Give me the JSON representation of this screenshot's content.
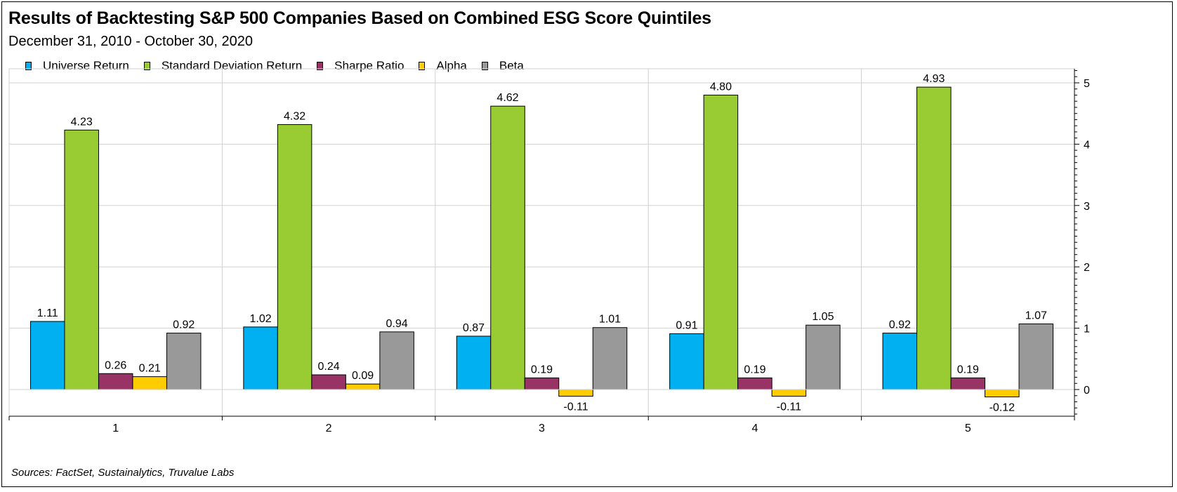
{
  "chart_data": {
    "type": "bar",
    "title": "Results of Backtesting S&P 500 Companies Based on Combined ESG Score Quintiles",
    "subtitle": "December 31, 2010 - October 30, 2020",
    "source": "Sources: FactSet, Sustainalytics, Truvalue Labs",
    "categories": [
      "1",
      "2",
      "3",
      "4",
      "5"
    ],
    "series": [
      {
        "name": "Universe Return",
        "color": "#00B0F0",
        "values": [
          1.11,
          1.02,
          0.87,
          0.91,
          0.92
        ],
        "labels": [
          "1.11",
          "1.02",
          "0.87",
          "0.91",
          "0.92"
        ]
      },
      {
        "name": "Standard Deviation Return",
        "color": "#99CC33",
        "values": [
          4.23,
          4.32,
          4.62,
          4.8,
          4.93
        ],
        "labels": [
          "4.23",
          "4.32",
          "4.62",
          "4.80",
          "4.93"
        ]
      },
      {
        "name": "Sharpe Ratio",
        "color": "#993366",
        "values": [
          0.26,
          0.24,
          0.19,
          0.19,
          0.19
        ],
        "labels": [
          "0.26",
          "0.24",
          "0.19",
          "0.19",
          "0.19"
        ]
      },
      {
        "name": "Alpha",
        "color": "#FFCC00",
        "values": [
          0.21,
          0.09,
          -0.11,
          -0.11,
          -0.12
        ],
        "labels": [
          "0.21",
          "0.09",
          "-0.11",
          "-0.11",
          "-0.12"
        ]
      },
      {
        "name": "Beta",
        "color": "#999999",
        "values": [
          0.92,
          0.94,
          1.01,
          1.05,
          1.07
        ],
        "labels": [
          "0.92",
          "0.94",
          "1.01",
          "1.05",
          "1.07"
        ]
      }
    ],
    "ylim": [
      -0.45,
      5.2
    ],
    "yticks": [
      0,
      1,
      2,
      3,
      4,
      5
    ],
    "ytick_labels": [
      "0",
      "1",
      "2",
      "3",
      "4",
      "5"
    ],
    "y_axis_side": "right",
    "grid": true,
    "legend_position": "top-left"
  }
}
